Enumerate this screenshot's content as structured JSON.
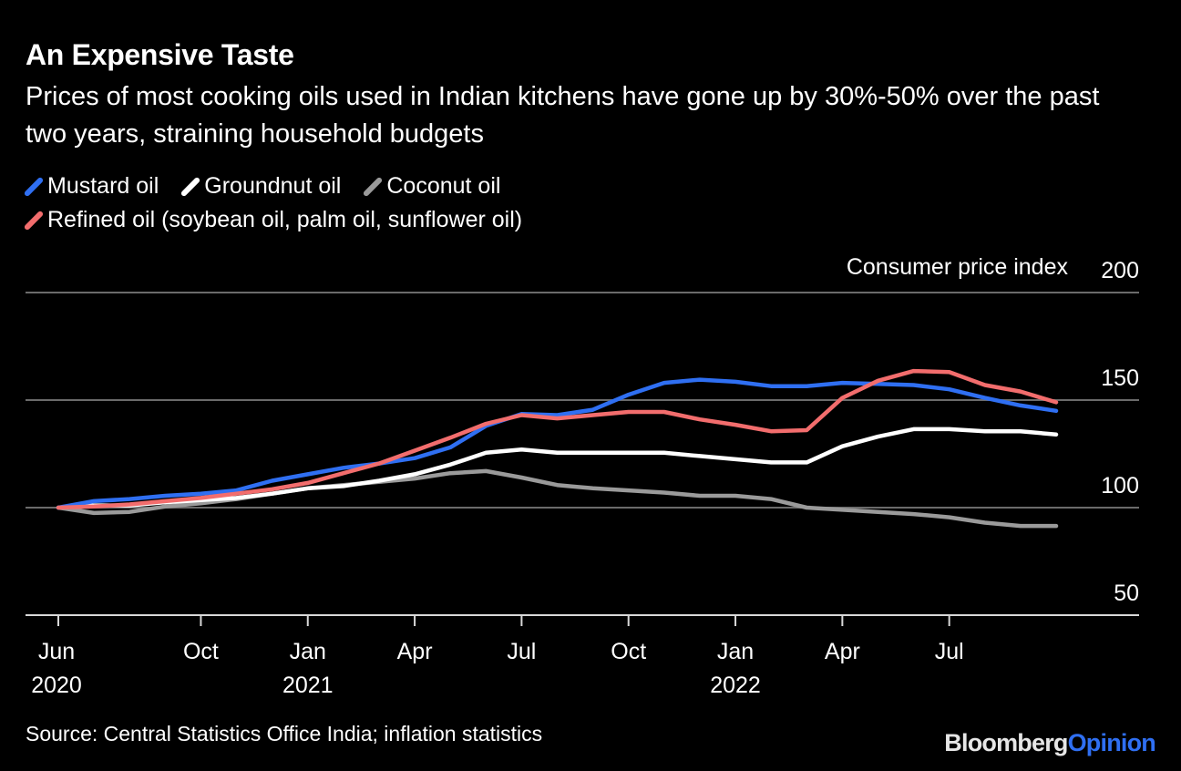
{
  "title": "An Expensive Taste",
  "subtitle": "Prices of most cooking oils used in Indian kitchens have gone up by 30%-50% over the past two years, straining household budgets",
  "legend": [
    {
      "label": "Mustard oil",
      "color": "#2f6ff2"
    },
    {
      "label": "Groundnut oil",
      "color": "#ffffff"
    },
    {
      "label": "Coconut oil",
      "color": "#9a9a9a"
    },
    {
      "label": "Refined oil (soybean oil, palm oil, sunflower oil)",
      "color": "#f26d6d"
    }
  ],
  "source": "Source: Central Statistics Office India; inflation statistics",
  "brand": {
    "part1": "Bloomberg",
    "part2": "Opinion"
  },
  "chart_data": {
    "type": "line",
    "ylabel": "Consumer price index",
    "ylim": [
      50,
      200
    ],
    "yticks": [
      50,
      100,
      150,
      200
    ],
    "grid": true,
    "x": [
      "Jun 2020",
      "Jul 2020",
      "Aug 2020",
      "Sep 2020",
      "Oct 2020",
      "Nov 2020",
      "Dec 2020",
      "Jan 2021",
      "Feb 2021",
      "Mar 2021",
      "Apr 2021",
      "May 2021",
      "Jun 2021",
      "Jul 2021",
      "Aug 2021",
      "Sep 2021",
      "Oct 2021",
      "Nov 2021",
      "Dec 2021",
      "Jan 2022",
      "Feb 2022",
      "Mar 2022",
      "Apr 2022",
      "May 2022",
      "Jun 2022",
      "Jul 2022",
      "Aug 2022",
      "Sep 2022",
      "Oct 2022"
    ],
    "xticks": [
      {
        "label": "Jun",
        "year": "2020",
        "index": 0
      },
      {
        "label": "Oct",
        "year": "",
        "index": 4
      },
      {
        "label": "Jan",
        "year": "2021",
        "index": 7
      },
      {
        "label": "Apr",
        "year": "",
        "index": 10
      },
      {
        "label": "Jul",
        "year": "",
        "index": 13
      },
      {
        "label": "Oct",
        "year": "",
        "index": 16
      },
      {
        "label": "Jan",
        "year": "2022",
        "index": 19
      },
      {
        "label": "Apr",
        "year": "",
        "index": 22
      },
      {
        "label": "Jul",
        "year": "",
        "index": 25
      }
    ],
    "series": [
      {
        "name": "Mustard oil",
        "color": "#2f6ff2",
        "values": [
          100,
          103,
          104,
          105.5,
          106.5,
          108,
          112.5,
          115.5,
          118.5,
          120.5,
          123,
          128,
          138,
          143.5,
          143,
          145.5,
          152.5,
          158,
          159.5,
          158.5,
          156.5,
          156.5,
          158,
          157.5,
          157,
          155,
          151,
          147.5,
          145
        ]
      },
      {
        "name": "Groundnut oil",
        "color": "#ffffff",
        "values": [
          100,
          101,
          101,
          102.5,
          103.5,
          104.5,
          106.5,
          109,
          110,
          112.5,
          115.5,
          120,
          125.5,
          127,
          125.5,
          125.5,
          125.5,
          125.5,
          124,
          122.5,
          121,
          121,
          128.5,
          133,
          136.5,
          136.5,
          135.5,
          135.5,
          134
        ]
      },
      {
        "name": "Coconut oil",
        "color": "#9a9a9a",
        "values": [
          100,
          97.5,
          98,
          100.5,
          102,
          104,
          106.5,
          109,
          110.5,
          112,
          113.5,
          116,
          117,
          114,
          110.5,
          109,
          108,
          107,
          105.5,
          105.5,
          104,
          100,
          99,
          98,
          97,
          95.5,
          93,
          91.5,
          91.5
        ]
      },
      {
        "name": "Refined oil (soybean oil, palm oil, sunflower oil)",
        "color": "#f26d6d",
        "values": [
          100,
          100.5,
          101.5,
          103,
          104.5,
          106.5,
          108.5,
          111.5,
          116,
          120.5,
          126.5,
          132.5,
          139,
          143,
          141.5,
          143,
          144.5,
          144.5,
          141,
          138.5,
          135.5,
          136,
          151,
          159,
          163.5,
          163,
          157,
          154,
          149
        ]
      }
    ]
  }
}
